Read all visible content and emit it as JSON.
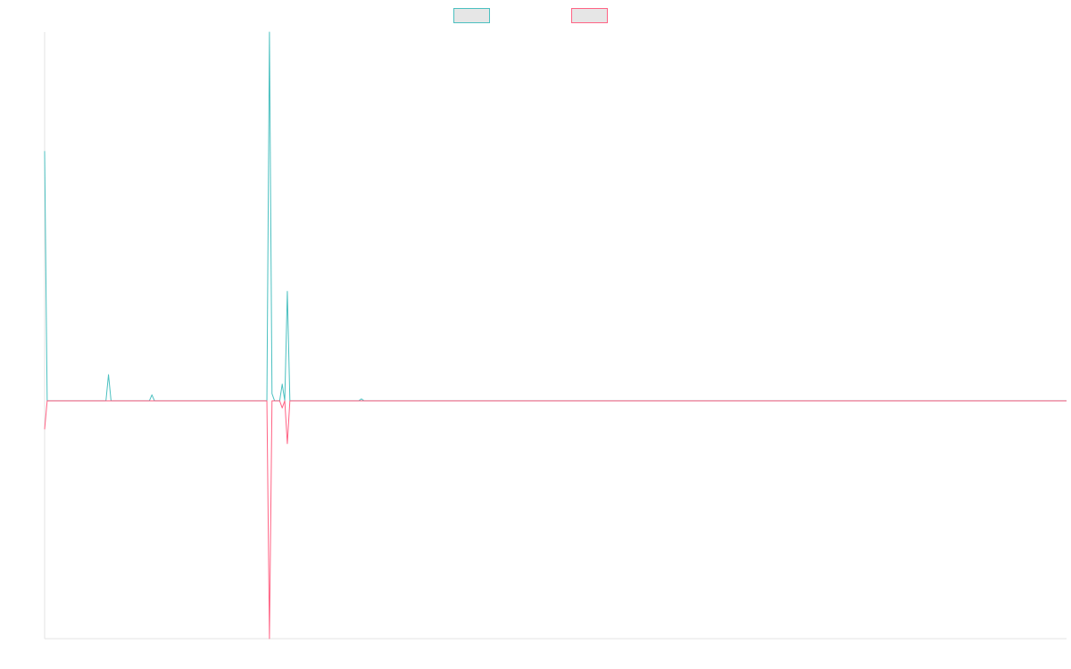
{
  "chart_data": {
    "type": "line",
    "title": "",
    "xlabel": "",
    "ylabel": "",
    "legend_position": "top-center",
    "grid": false,
    "xlim": [
      0,
      400
    ],
    "ylim": [
      -1.0,
      1.55
    ],
    "series": [
      {
        "color": "#4bc0c0",
        "fill": "#e6e6e6",
        "values": [
          1.05,
          0,
          0,
          0,
          0,
          0,
          0,
          0,
          0,
          0,
          0,
          0,
          0,
          0,
          0,
          0,
          0,
          0,
          0,
          0,
          0,
          0,
          0,
          0,
          0,
          0.11,
          0,
          0,
          0,
          0,
          0,
          0,
          0,
          0,
          0,
          0,
          0,
          0,
          0,
          0,
          0,
          0,
          0.025,
          0,
          0,
          0,
          0,
          0,
          0,
          0,
          0,
          0,
          0,
          0,
          0,
          0,
          0,
          0,
          0,
          0,
          0,
          0,
          0,
          0,
          0,
          0,
          0,
          0,
          0,
          0,
          0,
          0,
          0,
          0,
          0,
          0,
          0,
          0,
          0,
          0,
          0,
          0,
          0,
          0,
          0,
          0,
          0,
          0,
          1.55,
          0.03,
          0,
          0,
          0,
          0.07,
          0,
          0.46,
          0,
          0,
          0,
          0,
          0,
          0,
          0,
          0,
          0,
          0,
          0,
          0,
          0,
          0,
          0,
          0,
          0,
          0,
          0,
          0,
          0,
          0,
          0,
          0,
          0,
          0,
          0,
          0,
          0.008,
          0,
          0,
          0,
          0,
          0,
          0,
          0,
          0,
          0,
          0,
          0,
          0,
          0,
          0,
          0,
          0,
          0,
          0,
          0,
          0,
          0,
          0,
          0,
          0,
          0,
          0,
          0,
          0,
          0,
          0,
          0,
          0,
          0,
          0,
          0,
          0,
          0,
          0,
          0,
          0,
          0,
          0,
          0,
          0,
          0,
          0,
          0,
          0,
          0,
          0,
          0,
          0,
          0,
          0,
          0,
          0,
          0,
          0,
          0,
          0,
          0,
          0,
          0,
          0,
          0,
          0,
          0,
          0,
          0,
          0,
          0,
          0,
          0,
          0,
          0,
          0,
          0,
          0,
          0,
          0,
          0,
          0,
          0,
          0,
          0,
          0,
          0,
          0,
          0,
          0,
          0,
          0,
          0,
          0,
          0,
          0,
          0,
          0,
          0,
          0,
          0,
          0,
          0,
          0,
          0,
          0,
          0,
          0,
          0,
          0,
          0,
          0,
          0,
          0,
          0,
          0,
          0,
          0,
          0,
          0,
          0,
          0,
          0,
          0,
          0,
          0,
          0,
          0,
          0,
          0,
          0,
          0,
          0,
          0,
          0,
          0,
          0,
          0,
          0,
          0,
          0,
          0,
          0,
          0,
          0,
          0,
          0,
          0,
          0,
          0,
          0,
          0,
          0,
          0,
          0,
          0,
          0,
          0,
          0,
          0,
          0,
          0,
          0,
          0,
          0,
          0,
          0,
          0,
          0,
          0,
          0,
          0,
          0,
          0,
          0,
          0,
          0,
          0,
          0,
          0,
          0,
          0,
          0,
          0,
          0,
          0,
          0,
          0,
          0,
          0,
          0,
          0,
          0,
          0,
          0,
          0,
          0,
          0,
          0,
          0,
          0,
          0,
          0,
          0,
          0,
          0,
          0,
          0,
          0,
          0,
          0,
          0,
          0,
          0,
          0,
          0,
          0,
          0,
          0,
          0,
          0,
          0,
          0,
          0,
          0,
          0,
          0,
          0,
          0,
          0,
          0,
          0,
          0,
          0,
          0,
          0,
          0,
          0,
          0,
          0,
          0,
          0,
          0,
          0,
          0,
          0,
          0,
          0,
          0,
          0,
          0,
          0,
          0,
          0,
          0,
          0,
          0,
          0,
          0,
          0,
          0,
          0,
          0,
          0,
          0,
          0,
          0,
          0,
          0,
          0,
          0,
          0,
          0,
          0,
          0,
          0
        ]
      },
      {
        "color": "#ff6384",
        "fill": "#e6e6e6",
        "values": [
          -0.12,
          0,
          0,
          0,
          0,
          0,
          0,
          0,
          0,
          0,
          0,
          0,
          0,
          0,
          0,
          0,
          0,
          0,
          0,
          0,
          0,
          0,
          0,
          0,
          0,
          0,
          0,
          0,
          0,
          0,
          0,
          0,
          0,
          0,
          0,
          0,
          0,
          0,
          0,
          0,
          0,
          0,
          0,
          0,
          0,
          0,
          0,
          0,
          0,
          0,
          0,
          0,
          0,
          0,
          0,
          0,
          0,
          0,
          0,
          0,
          0,
          0,
          0,
          0,
          0,
          0,
          0,
          0,
          0,
          0,
          0,
          0,
          0,
          0,
          0,
          0,
          0,
          0,
          0,
          0,
          0,
          0,
          0,
          0,
          0,
          0,
          0,
          0,
          -1.0,
          0,
          0,
          0,
          0,
          -0.03,
          0,
          -0.18,
          0,
          0,
          0,
          0,
          0,
          0,
          0,
          0,
          0,
          0,
          0,
          0,
          0,
          0,
          0,
          0,
          0,
          0,
          0,
          0,
          0,
          0,
          0,
          0,
          0,
          0,
          0,
          0,
          0,
          0,
          0,
          0,
          0,
          0,
          0,
          0,
          0,
          0,
          0,
          0,
          0,
          0,
          0,
          0,
          0,
          0,
          0,
          0,
          0,
          0,
          0,
          0,
          0,
          0,
          0,
          0,
          0,
          0,
          0,
          0,
          0,
          0,
          0,
          0,
          0,
          0,
          0,
          0,
          0,
          0,
          0,
          0,
          0,
          0,
          0,
          0,
          0,
          0,
          0,
          0,
          0,
          0,
          0,
          0,
          0,
          0,
          0,
          0,
          0,
          0,
          0,
          0,
          0,
          0,
          0,
          0,
          0,
          0,
          0,
          0,
          0,
          0,
          0,
          0,
          0,
          0,
          0,
          0,
          0,
          0,
          0,
          0,
          0,
          0,
          0,
          0,
          0,
          0,
          0,
          0,
          0,
          0,
          0,
          0,
          0,
          0,
          0,
          0,
          0,
          0,
          0,
          0,
          0,
          0,
          0,
          0,
          0,
          0,
          0,
          0,
          0,
          0,
          0,
          0,
          0,
          0,
          0,
          0,
          0,
          0,
          0,
          0,
          0,
          0,
          0,
          0,
          0,
          0,
          0,
          0,
          0,
          0,
          0,
          0,
          0,
          0,
          0,
          0,
          0,
          0,
          0,
          0,
          0,
          0,
          0,
          0,
          0,
          0,
          0,
          0,
          0,
          0,
          0,
          0,
          0,
          0,
          0,
          0,
          0,
          0,
          0,
          0,
          0,
          0,
          0,
          0,
          0,
          0,
          0,
          0,
          0,
          0,
          0,
          0,
          0,
          0,
          0,
          0,
          0,
          0,
          0,
          0,
          0,
          0,
          0,
          0,
          0,
          0,
          0,
          0,
          0,
          0,
          0,
          0,
          0,
          0,
          0,
          0,
          0,
          0,
          0,
          0,
          0,
          0,
          0,
          0,
          0,
          0,
          0,
          0,
          0,
          0,
          0,
          0,
          0,
          0,
          0,
          0,
          0,
          0,
          0,
          0,
          0,
          0,
          0,
          0,
          0,
          0,
          0,
          0,
          0,
          0,
          0,
          0,
          0,
          0,
          0,
          0,
          0,
          0,
          0,
          0,
          0,
          0,
          0,
          0,
          0,
          0,
          0,
          0,
          0,
          0,
          0,
          0,
          0,
          0,
          0,
          0,
          0,
          0,
          0,
          0,
          0,
          0,
          0,
          0,
          0,
          0,
          0,
          0,
          0,
          0,
          0,
          0,
          0
        ]
      }
    ]
  }
}
